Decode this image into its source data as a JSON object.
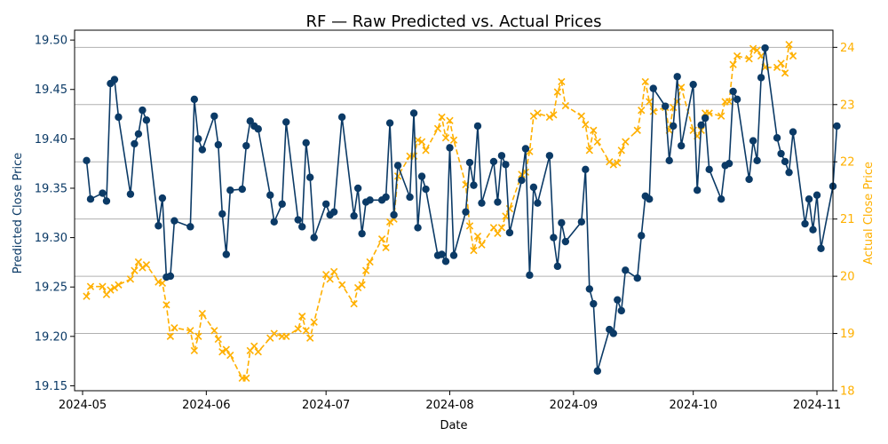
{
  "chart_data": {
    "type": "line",
    "title": "RF — Raw Predicted vs. Actual Prices",
    "xlabel": "Date",
    "ylabel_left": "Predicted Close Price",
    "ylabel_right": "Actual Close Price",
    "x_range": [
      "2024-04-29",
      "2024-11-05"
    ],
    "x_ticks": [
      "2024-05",
      "2024-06",
      "2024-07",
      "2024-08",
      "2024-09",
      "2024-10",
      "2024-11"
    ],
    "ylim_left": [
      19.145,
      19.51
    ],
    "ylim_right": [
      18.0,
      24.3
    ],
    "y_ticks_left": [
      "19.15",
      "19.20",
      "19.25",
      "19.30",
      "19.35",
      "19.40",
      "19.45",
      "19.50"
    ],
    "y_ticks_right": [
      "18",
      "19",
      "20",
      "21",
      "22",
      "23",
      "24"
    ],
    "grid": "horizontal lines at right-axis ticks",
    "colors": {
      "predicted": "#0b3a66",
      "actual": "#ffb000",
      "grid": "#b0b0b0"
    },
    "series": [
      {
        "axis": "left",
        "style": "solid line with circle markers",
        "points": [
          [
            "2024-05-02",
            19.378
          ],
          [
            "2024-05-03",
            19.339
          ],
          [
            "2024-05-06",
            19.345
          ],
          [
            "2024-05-07",
            19.337
          ],
          [
            "2024-05-08",
            19.456
          ],
          [
            "2024-05-09",
            19.46
          ],
          [
            "2024-05-10",
            19.422
          ],
          [
            "2024-05-13",
            19.344
          ],
          [
            "2024-05-14",
            19.395
          ],
          [
            "2024-05-15",
            19.405
          ],
          [
            "2024-05-16",
            19.429
          ],
          [
            "2024-05-17",
            19.419
          ],
          [
            "2024-05-20",
            19.312
          ],
          [
            "2024-05-21",
            19.34
          ],
          [
            "2024-05-22",
            19.26
          ],
          [
            "2024-05-23",
            19.261
          ],
          [
            "2024-05-24",
            19.317
          ],
          [
            "2024-05-28",
            19.311
          ],
          [
            "2024-05-29",
            19.44
          ],
          [
            "2024-05-30",
            19.4
          ],
          [
            "2024-05-31",
            19.389
          ],
          [
            "2024-06-03",
            19.423
          ],
          [
            "2024-06-04",
            19.394
          ],
          [
            "2024-06-05",
            19.324
          ],
          [
            "2024-06-06",
            19.283
          ],
          [
            "2024-06-07",
            19.348
          ],
          [
            "2024-06-10",
            19.349
          ],
          [
            "2024-06-11",
            19.393
          ],
          [
            "2024-06-12",
            19.418
          ],
          [
            "2024-06-13",
            19.413
          ],
          [
            "2024-06-14",
            19.41
          ],
          [
            "2024-06-17",
            19.343
          ],
          [
            "2024-06-18",
            19.316
          ],
          [
            "2024-06-20",
            19.334
          ],
          [
            "2024-06-21",
            19.417
          ],
          [
            "2024-06-24",
            19.318
          ],
          [
            "2024-06-25",
            19.311
          ],
          [
            "2024-06-26",
            19.396
          ],
          [
            "2024-06-27",
            19.361
          ],
          [
            "2024-06-28",
            19.3
          ],
          [
            "2024-07-01",
            19.334
          ],
          [
            "2024-07-02",
            19.323
          ],
          [
            "2024-07-03",
            19.326
          ],
          [
            "2024-07-05",
            19.422
          ],
          [
            "2024-07-08",
            19.322
          ],
          [
            "2024-07-09",
            19.35
          ],
          [
            "2024-07-10",
            19.304
          ],
          [
            "2024-07-11",
            19.336
          ],
          [
            "2024-07-12",
            19.338
          ],
          [
            "2024-07-15",
            19.338
          ],
          [
            "2024-07-16",
            19.341
          ],
          [
            "2024-07-17",
            19.416
          ],
          [
            "2024-07-18",
            19.323
          ],
          [
            "2024-07-19",
            19.373
          ],
          [
            "2024-07-22",
            19.341
          ],
          [
            "2024-07-23",
            19.426
          ],
          [
            "2024-07-24",
            19.31
          ],
          [
            "2024-07-25",
            19.362
          ],
          [
            "2024-07-26",
            19.349
          ],
          [
            "2024-07-29",
            19.282
          ],
          [
            "2024-07-30",
            19.283
          ],
          [
            "2024-07-31",
            19.276
          ],
          [
            "2024-08-01",
            19.391
          ],
          [
            "2024-08-02",
            19.282
          ],
          [
            "2024-08-05",
            19.326
          ],
          [
            "2024-08-06",
            19.376
          ],
          [
            "2024-08-07",
            19.353
          ],
          [
            "2024-08-08",
            19.413
          ],
          [
            "2024-08-09",
            19.335
          ],
          [
            "2024-08-12",
            19.377
          ],
          [
            "2024-08-13",
            19.336
          ],
          [
            "2024-08-14",
            19.383
          ],
          [
            "2024-08-15",
            19.374
          ],
          [
            "2024-08-16",
            19.305
          ],
          [
            "2024-08-19",
            19.358
          ],
          [
            "2024-08-20",
            19.39
          ],
          [
            "2024-08-21",
            19.262
          ],
          [
            "2024-08-22",
            19.351
          ],
          [
            "2024-08-23",
            19.335
          ],
          [
            "2024-08-26",
            19.383
          ],
          [
            "2024-08-27",
            19.3
          ],
          [
            "2024-08-28",
            19.271
          ],
          [
            "2024-08-29",
            19.315
          ],
          [
            "2024-08-30",
            19.296
          ],
          [
            "2024-09-03",
            19.316
          ],
          [
            "2024-09-04",
            19.369
          ],
          [
            "2024-09-05",
            19.248
          ],
          [
            "2024-09-06",
            19.233
          ],
          [
            "2024-09-07",
            19.165
          ],
          [
            "2024-09-10",
            19.207
          ],
          [
            "2024-09-11",
            19.203
          ],
          [
            "2024-09-12",
            19.237
          ],
          [
            "2024-09-13",
            19.226
          ],
          [
            "2024-09-14",
            19.267
          ],
          [
            "2024-09-17",
            19.259
          ],
          [
            "2024-09-18",
            19.302
          ],
          [
            "2024-09-19",
            19.342
          ],
          [
            "2024-09-20",
            19.339
          ],
          [
            "2024-09-21",
            19.451
          ],
          [
            "2024-09-24",
            19.433
          ],
          [
            "2024-09-25",
            19.378
          ],
          [
            "2024-09-26",
            19.413
          ],
          [
            "2024-09-27",
            19.463
          ],
          [
            "2024-09-28",
            19.393
          ],
          [
            "2024-10-01",
            19.455
          ],
          [
            "2024-10-02",
            19.348
          ],
          [
            "2024-10-03",
            19.414
          ],
          [
            "2024-10-04",
            19.421
          ],
          [
            "2024-10-05",
            19.369
          ],
          [
            "2024-10-08",
            19.339
          ],
          [
            "2024-10-09",
            19.373
          ],
          [
            "2024-10-10",
            19.375
          ],
          [
            "2024-10-11",
            19.448
          ],
          [
            "2024-10-12",
            19.44
          ],
          [
            "2024-10-15",
            19.359
          ],
          [
            "2024-10-16",
            19.398
          ],
          [
            "2024-10-17",
            19.378
          ],
          [
            "2024-10-18",
            19.462
          ],
          [
            "2024-10-19",
            19.492
          ],
          [
            "2024-10-22",
            19.401
          ],
          [
            "2024-10-23",
            19.385
          ],
          [
            "2024-10-24",
            19.377
          ],
          [
            "2024-10-25",
            19.366
          ],
          [
            "2024-10-26",
            19.407
          ],
          [
            "2024-10-29",
            19.314
          ],
          [
            "2024-10-30",
            19.339
          ],
          [
            "2024-10-31",
            19.308
          ],
          [
            "2024-11-01",
            19.343
          ],
          [
            "2024-11-02",
            19.289
          ],
          [
            "2024-11-05",
            19.352
          ],
          [
            "2024-11-06",
            19.413
          ]
        ]
      },
      {
        "axis": "right",
        "style": "dashed line with x markers",
        "points": [
          [
            "2024-05-02",
            19.65
          ],
          [
            "2024-05-03",
            19.82
          ],
          [
            "2024-05-06",
            19.82
          ],
          [
            "2024-05-07",
            19.68
          ],
          [
            "2024-05-08",
            19.76
          ],
          [
            "2024-05-09",
            19.8
          ],
          [
            "2024-05-10",
            19.85
          ],
          [
            "2024-05-13",
            19.95
          ],
          [
            "2024-05-14",
            20.1
          ],
          [
            "2024-05-15",
            20.25
          ],
          [
            "2024-05-16",
            20.15
          ],
          [
            "2024-05-17",
            20.2
          ],
          [
            "2024-05-20",
            19.9
          ],
          [
            "2024-05-21",
            19.88
          ],
          [
            "2024-05-22",
            19.5
          ],
          [
            "2024-05-23",
            18.95
          ],
          [
            "2024-05-24",
            19.1
          ],
          [
            "2024-05-28",
            19.05
          ],
          [
            "2024-05-29",
            18.7
          ],
          [
            "2024-05-30",
            18.95
          ],
          [
            "2024-05-31",
            19.35
          ],
          [
            "2024-06-03",
            19.05
          ],
          [
            "2024-06-04",
            18.9
          ],
          [
            "2024-06-05",
            18.68
          ],
          [
            "2024-06-06",
            18.72
          ],
          [
            "2024-06-07",
            18.62
          ],
          [
            "2024-06-10",
            18.22
          ],
          [
            "2024-06-11",
            18.22
          ],
          [
            "2024-06-12",
            18.7
          ],
          [
            "2024-06-13",
            18.78
          ],
          [
            "2024-06-14",
            18.68
          ],
          [
            "2024-06-17",
            18.92
          ],
          [
            "2024-06-18",
            19.0
          ],
          [
            "2024-06-20",
            18.95
          ],
          [
            "2024-06-21",
            18.95
          ],
          [
            "2024-06-24",
            19.08
          ],
          [
            "2024-06-25",
            19.3
          ],
          [
            "2024-06-26",
            19.05
          ],
          [
            "2024-06-27",
            18.92
          ],
          [
            "2024-06-28",
            19.2
          ],
          [
            "2024-07-01",
            20.03
          ],
          [
            "2024-07-02",
            19.95
          ],
          [
            "2024-07-03",
            20.08
          ],
          [
            "2024-07-05",
            19.85
          ],
          [
            "2024-07-08",
            19.52
          ],
          [
            "2024-07-09",
            19.8
          ],
          [
            "2024-07-10",
            19.85
          ],
          [
            "2024-07-11",
            20.1
          ],
          [
            "2024-07-12",
            20.25
          ],
          [
            "2024-07-15",
            20.65
          ],
          [
            "2024-07-16",
            20.5
          ],
          [
            "2024-07-17",
            20.95
          ],
          [
            "2024-07-18",
            21.0
          ],
          [
            "2024-07-19",
            21.75
          ],
          [
            "2024-07-22",
            22.1
          ],
          [
            "2024-07-23",
            22.1
          ],
          [
            "2024-07-24",
            22.38
          ],
          [
            "2024-07-25",
            22.35
          ],
          [
            "2024-07-26",
            22.2
          ],
          [
            "2024-07-29",
            22.58
          ],
          [
            "2024-07-30",
            22.78
          ],
          [
            "2024-07-31",
            22.42
          ],
          [
            "2024-08-01",
            22.72
          ],
          [
            "2024-08-02",
            22.38
          ],
          [
            "2024-08-05",
            21.6
          ],
          [
            "2024-08-06",
            20.88
          ],
          [
            "2024-08-07",
            20.45
          ],
          [
            "2024-08-08",
            20.7
          ],
          [
            "2024-08-09",
            20.55
          ],
          [
            "2024-08-12",
            20.85
          ],
          [
            "2024-08-13",
            20.75
          ],
          [
            "2024-08-14",
            20.85
          ],
          [
            "2024-08-15",
            21.05
          ],
          [
            "2024-08-16",
            21.18
          ],
          [
            "2024-08-19",
            21.78
          ],
          [
            "2024-08-20",
            21.82
          ],
          [
            "2024-08-21",
            22.18
          ],
          [
            "2024-08-22",
            22.8
          ],
          [
            "2024-08-23",
            22.85
          ],
          [
            "2024-08-26",
            22.78
          ],
          [
            "2024-08-27",
            22.82
          ],
          [
            "2024-08-28",
            23.22
          ],
          [
            "2024-08-29",
            23.4
          ],
          [
            "2024-08-30",
            22.98
          ],
          [
            "2024-09-03",
            22.8
          ],
          [
            "2024-09-04",
            22.65
          ],
          [
            "2024-09-05",
            22.2
          ],
          [
            "2024-09-06",
            22.55
          ],
          [
            "2024-09-07",
            22.35
          ],
          [
            "2024-09-10",
            22.0
          ],
          [
            "2024-09-11",
            21.95
          ],
          [
            "2024-09-12",
            21.98
          ],
          [
            "2024-09-13",
            22.2
          ],
          [
            "2024-09-14",
            22.35
          ],
          [
            "2024-09-17",
            22.55
          ],
          [
            "2024-09-18",
            22.9
          ],
          [
            "2024-09-19",
            23.4
          ],
          [
            "2024-09-20",
            23.05
          ],
          [
            "2024-09-21",
            22.88
          ],
          [
            "2024-09-24",
            22.95
          ],
          [
            "2024-09-25",
            22.55
          ],
          [
            "2024-09-26",
            22.95
          ],
          [
            "2024-09-27",
            23.05
          ],
          [
            "2024-09-28",
            23.3
          ],
          [
            "2024-10-01",
            22.55
          ],
          [
            "2024-10-02",
            22.45
          ],
          [
            "2024-10-03",
            22.55
          ],
          [
            "2024-10-04",
            22.85
          ],
          [
            "2024-10-05",
            22.85
          ],
          [
            "2024-10-08",
            22.8
          ],
          [
            "2024-10-09",
            23.05
          ],
          [
            "2024-10-10",
            23.05
          ],
          [
            "2024-10-11",
            23.7
          ],
          [
            "2024-10-12",
            23.85
          ],
          [
            "2024-10-15",
            23.8
          ],
          [
            "2024-10-16",
            23.98
          ],
          [
            "2024-10-17",
            23.95
          ],
          [
            "2024-10-18",
            23.85
          ],
          [
            "2024-10-19",
            23.65
          ],
          [
            "2024-10-22",
            23.65
          ],
          [
            "2024-10-23",
            23.72
          ],
          [
            "2024-10-24",
            23.55
          ],
          [
            "2024-10-25",
            24.05
          ],
          [
            "2024-10-26",
            23.85
          ]
        ]
      }
    ]
  }
}
